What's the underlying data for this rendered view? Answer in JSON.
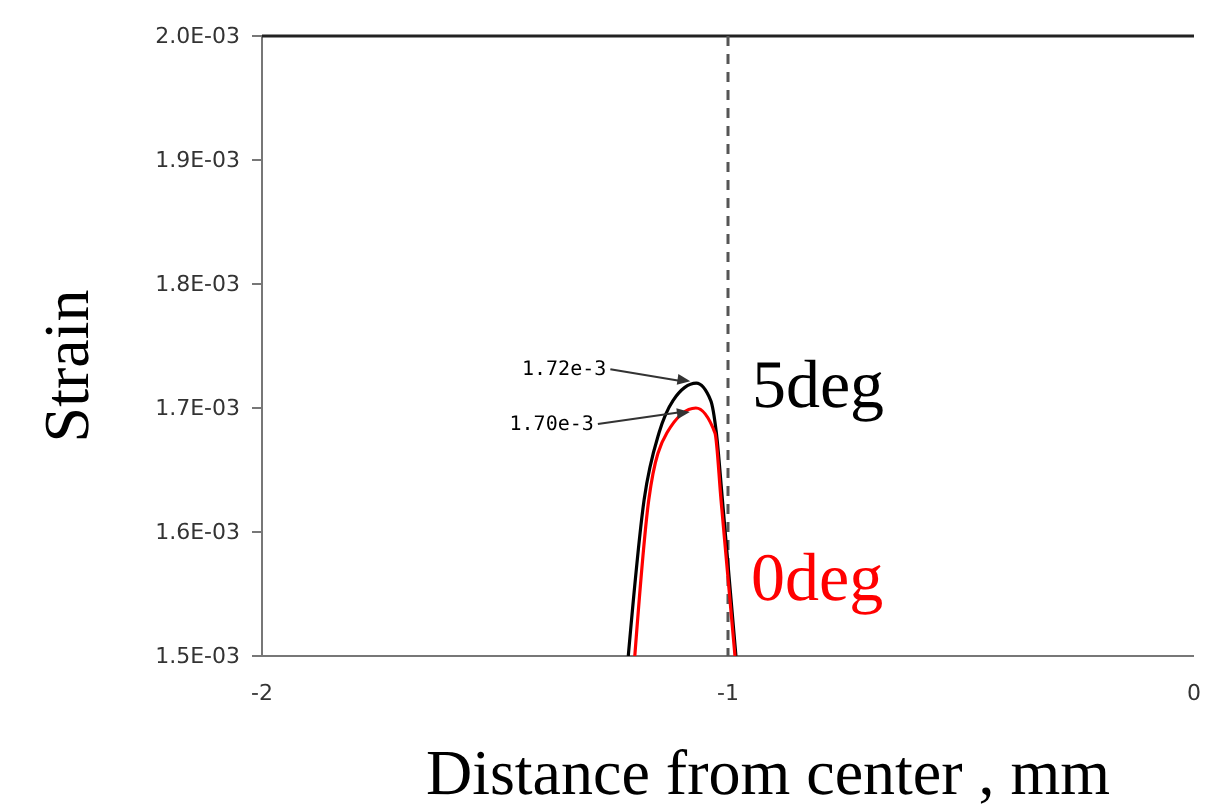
{
  "chart_data": {
    "type": "line",
    "xlabel": "Distance from center , mm",
    "ylabel": "Strain",
    "xlim": [
      -2,
      0
    ],
    "xticks": [
      -2,
      -1,
      0
    ],
    "ylim": [
      0.0015,
      0.002
    ],
    "yticks": [
      {
        "value": 0.0015,
        "label": "1.5E-03"
      },
      {
        "value": 0.0016,
        "label": "1.6E-03"
      },
      {
        "value": 0.0017,
        "label": "1.7E-03"
      },
      {
        "value": 0.0018,
        "label": "1.8E-03"
      },
      {
        "value": 0.0019,
        "label": "1.9E-03"
      },
      {
        "value": 0.002,
        "label": "2.0E-03"
      }
    ],
    "grid": false,
    "legend": false,
    "marker": "none",
    "line_style": "solid",
    "series": [
      {
        "name": "5deg",
        "color": "#000000",
        "x": [
          -1.214,
          -1.18,
          -1.148,
          -1.118,
          -1.068,
          -1.037,
          -1.025,
          -1.012,
          -0.983
        ],
        "values": [
          0.0015,
          0.001626,
          0.00168,
          0.001706,
          0.00172,
          0.001706,
          0.00168,
          0.001626,
          0.0015
        ]
      },
      {
        "name": "0deg",
        "color": "#ff0000",
        "x": [
          -1.2,
          -1.17,
          -1.131,
          -1.069,
          -1.028,
          -1.015,
          -0.985
        ],
        "values": [
          0.0015,
          0.001626,
          0.00168,
          0.0017,
          0.00168,
          0.001626,
          0.0015
        ]
      }
    ],
    "ref_lines": [
      {
        "axis": "x",
        "value": -1,
        "label": null,
        "color": "#555555",
        "line_style": "dashed"
      }
    ],
    "annotations": [
      {
        "text": "1.72e-3",
        "x": -1.068,
        "y": 0.00172
      },
      {
        "text": "1.70e-3",
        "x": -1.069,
        "y": 0.0017
      }
    ]
  }
}
